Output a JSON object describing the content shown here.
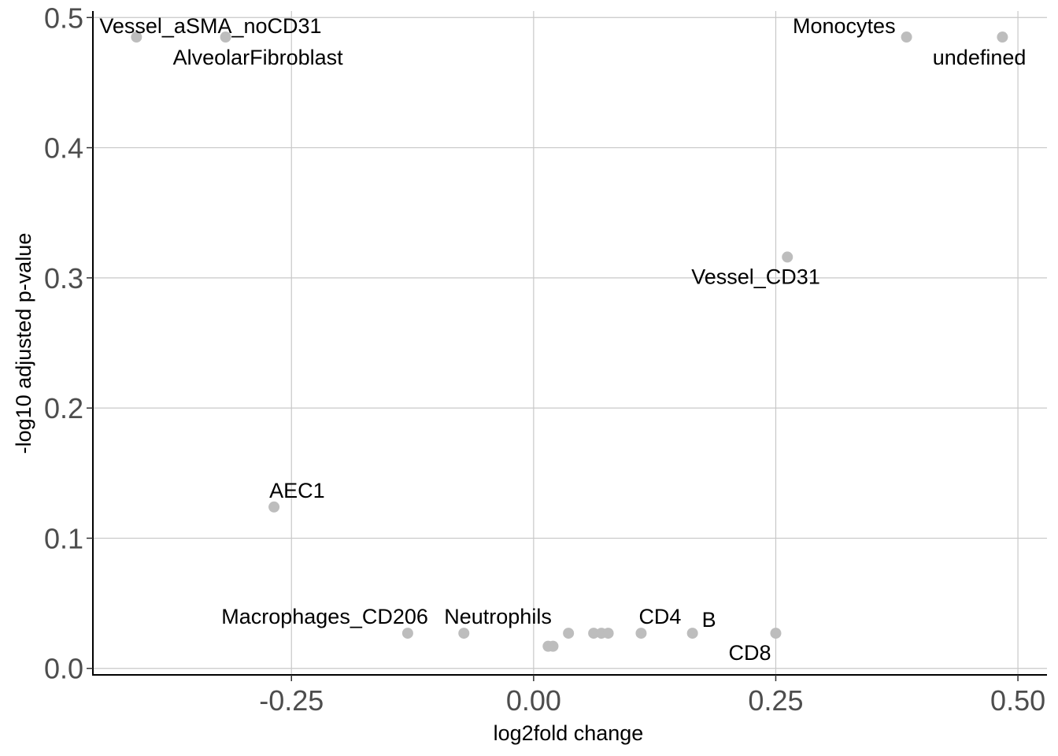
{
  "chart_data": {
    "type": "scatter",
    "title": "",
    "xlabel": "log2fold change",
    "ylabel": "-log10 adjusted p-value",
    "xlim": [
      -0.455,
      0.53
    ],
    "ylim": [
      -0.005,
      0.505
    ],
    "x_ticks": [
      -0.25,
      0.0,
      0.25,
      0.5
    ],
    "x_tick_labels": [
      "-0.25",
      "0.00",
      "0.25",
      "0.50"
    ],
    "y_ticks": [
      0.0,
      0.1,
      0.2,
      0.3,
      0.4,
      0.5
    ],
    "y_tick_labels": [
      "0.0",
      "0.1",
      "0.2",
      "0.3",
      "0.4",
      "0.5"
    ],
    "grid": true,
    "legend": "none",
    "point_color": "#bdbdbd",
    "points": [
      {
        "label": "Vessel_aSMA_noCD31",
        "x": -0.41,
        "y": 0.485
      },
      {
        "label": "AlveolarFibroblast",
        "x": -0.318,
        "y": 0.485
      },
      {
        "label": "Monocytes",
        "x": 0.385,
        "y": 0.485
      },
      {
        "label": "undefined",
        "x": 0.484,
        "y": 0.485
      },
      {
        "label": "Vessel_CD31",
        "x": 0.262,
        "y": 0.316
      },
      {
        "label": "AEC1",
        "x": -0.268,
        "y": 0.124
      },
      {
        "label": "Macrophages_CD206",
        "x": -0.13,
        "y": 0.027
      },
      {
        "label": "Neutrophils",
        "x": -0.072,
        "y": 0.027
      },
      {
        "label": "",
        "x": 0.015,
        "y": 0.017
      },
      {
        "label": "",
        "x": 0.02,
        "y": 0.017
      },
      {
        "label": "",
        "x": 0.036,
        "y": 0.027
      },
      {
        "label": "",
        "x": 0.062,
        "y": 0.027
      },
      {
        "label": "",
        "x": 0.07,
        "y": 0.027
      },
      {
        "label": "",
        "x": 0.077,
        "y": 0.027
      },
      {
        "label": "CD4",
        "x": 0.111,
        "y": 0.027
      },
      {
        "label": "B",
        "x": 0.164,
        "y": 0.027
      },
      {
        "label": "CD8",
        "x": 0.25,
        "y": 0.027
      }
    ]
  }
}
